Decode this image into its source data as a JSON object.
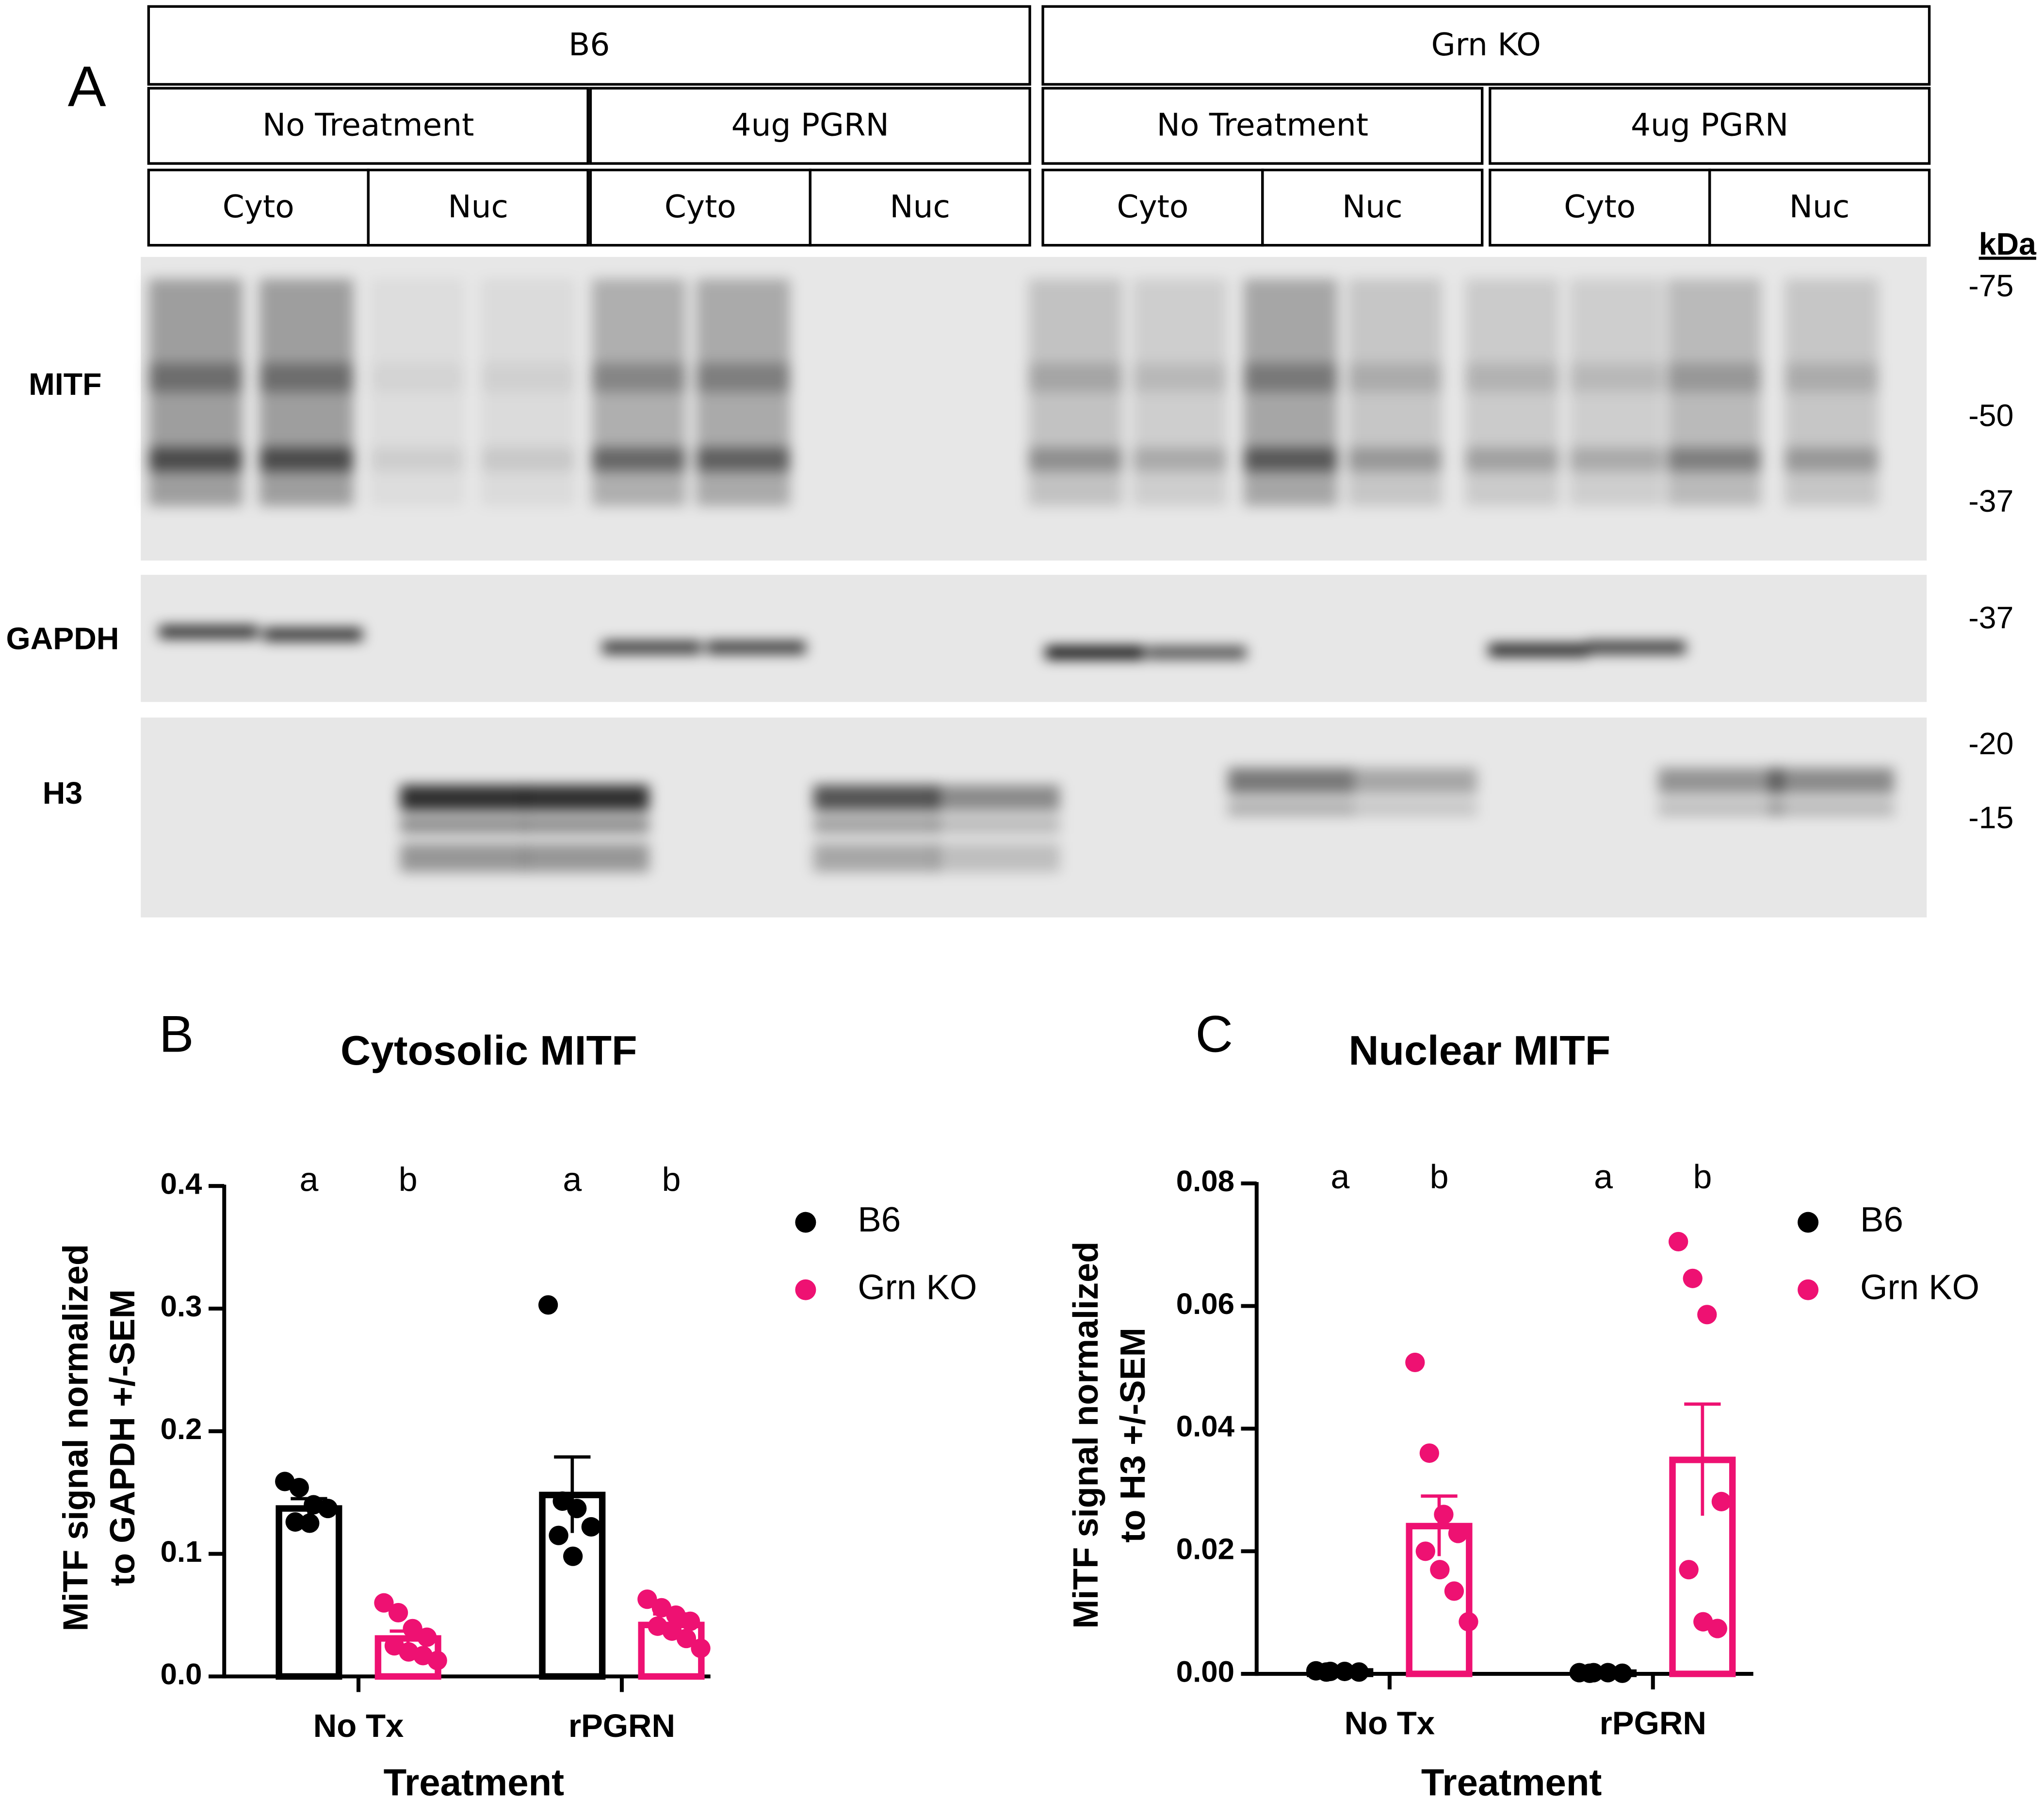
{
  "panel_labels": [
    "A",
    "B",
    "C"
  ],
  "blot": {
    "genotypes": [
      "B6",
      "Grn KO"
    ],
    "treatments": [
      "No Treatment",
      "4ug PGRN",
      "No Treatment",
      "4ug PGRN"
    ],
    "fractions": [
      "Cyto",
      "Nuc",
      "Cyto",
      "Nuc",
      "Cyto",
      "Nuc",
      "Cyto",
      "Nuc"
    ],
    "rows": [
      "MITF",
      "GAPDH",
      "H3"
    ],
    "kda_label": "kDa",
    "markers": [
      "-75",
      "-50",
      "-37",
      "-37",
      "-20",
      "-15"
    ]
  },
  "chart_data": [
    {
      "type": "bar",
      "title": "Cytosolic MITF",
      "ylabel": [
        "MiTF signal normalized",
        "to GAPDH +/-SEM"
      ],
      "xlabel": "Treatment",
      "categories": [
        "No Tx",
        "rPGRN"
      ],
      "ylim": [
        0,
        0.4
      ],
      "yticks": [
        {
          "value": 0,
          "label": "0.0"
        },
        0.1,
        0.2,
        0.3,
        0.4
      ],
      "series": [
        {
          "name": "B6",
          "color": "#000000",
          "values": [
            0.137,
            0.148
          ],
          "errors": [
            0.008,
            0.031
          ],
          "letters": [
            "a",
            "a"
          ],
          "points": [
            [
              0.159,
              0.154,
              0.14,
              0.137,
              0.126,
              0.125
            ],
            [
              0.303,
              0.143,
              0.137,
              0.122,
              0.115,
              0.098
            ]
          ]
        },
        {
          "name": "Grn KO",
          "color": "#ee1172",
          "values": [
            0.031,
            0.042
          ],
          "errors": [
            0.006,
            0.009
          ],
          "letters": [
            "b",
            "b"
          ],
          "points": [
            [
              0.06,
              0.052,
              0.039,
              0.032,
              0.025,
              0.02,
              0.017,
              0.013
            ],
            [
              0.063,
              0.056,
              0.05,
              0.045,
              0.041,
              0.037,
              0.031,
              0.023
            ]
          ]
        }
      ]
    },
    {
      "type": "bar",
      "title": "Nuclear MITF",
      "ylabel": [
        "MiTF signal normalized",
        "to H3 +/-SEM"
      ],
      "xlabel": "Treatment",
      "categories": [
        "No Tx",
        "rPGRN"
      ],
      "ylim": [
        0,
        0.08
      ],
      "yticks": [
        {
          "value": 0,
          "label": "0.00"
        },
        {
          "value": 0.02,
          "label": "0.02"
        },
        {
          "value": 0.04,
          "label": "0.04"
        },
        {
          "value": 0.06,
          "label": "0.06"
        },
        {
          "value": 0.08,
          "label": "0.08"
        }
      ],
      "series": [
        {
          "name": "B6",
          "color": "#000000",
          "values": [
            0.0004,
            0.0002
          ],
          "errors": [
            0.0001,
            0.0001
          ],
          "letters": [
            "a",
            "a"
          ],
          "points": [
            [
              0.0005,
              0.0004,
              0.0004,
              0.0003,
              0.0003
            ],
            [
              0.0002,
              0.0002,
              0.0002,
              0.0001,
              0.0001
            ]
          ]
        },
        {
          "name": "Grn KO",
          "color": "#ee1172",
          "values": [
            0.0241,
            0.0349
          ],
          "errors": [
            0.0049,
            0.0091
          ],
          "letters": [
            "b",
            "b"
          ],
          "points": [
            [
              0.0508,
              0.036,
              0.026,
              0.0229,
              0.02,
              0.017,
              0.0135,
              0.0085
            ],
            [
              0.0705,
              0.0645,
              0.0586,
              0.0281,
              0.017,
              0.0085,
              0.0074
            ]
          ]
        }
      ]
    }
  ]
}
